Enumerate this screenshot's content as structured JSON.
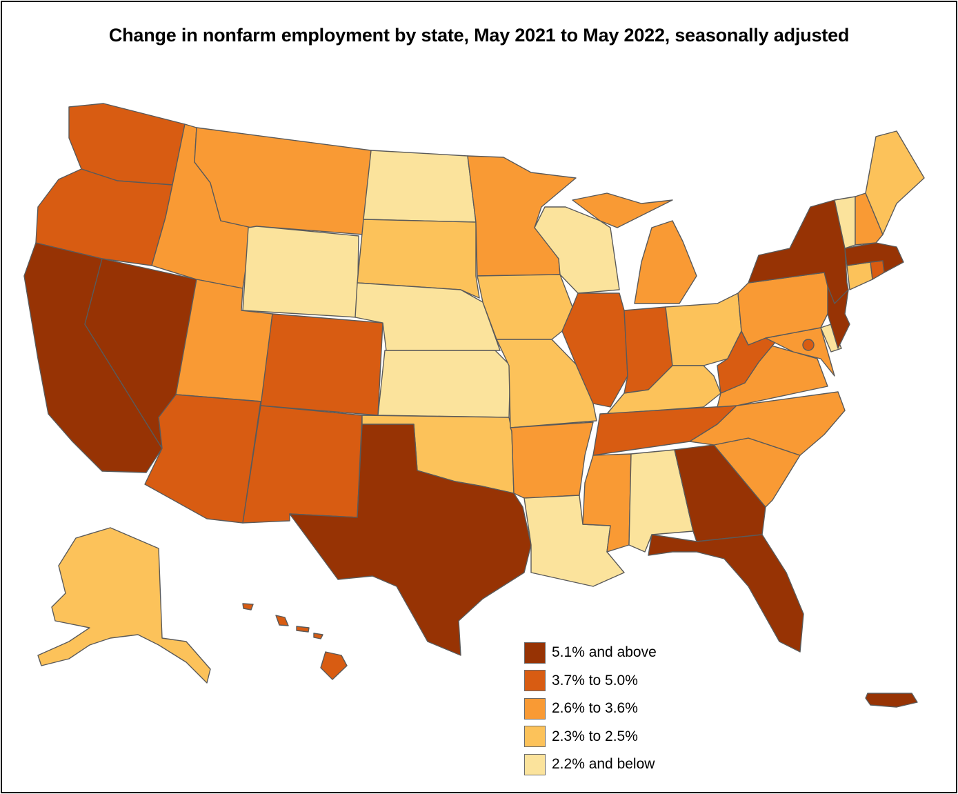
{
  "title": "Change in nonfarm employment by state, May 2021 to May 2022, seasonally adjusted",
  "colors": {
    "c1": "#fbe39c",
    "c2": "#fcc25a",
    "c3": "#f99a34",
    "c4": "#d85c12",
    "c5": "#973304"
  },
  "legend": [
    {
      "label": "5.1% and above",
      "color_key": "c5"
    },
    {
      "label": "3.7% to 5.0%",
      "color_key": "c4"
    },
    {
      "label": "2.6% to 3.6%",
      "color_key": "c3"
    },
    {
      "label": "2.3% to 2.5%",
      "color_key": "c2"
    },
    {
      "label": "2.2% and below",
      "color_key": "c1"
    }
  ],
  "states": {
    "WA": "c4",
    "OR": "c4",
    "CA": "c5",
    "NV": "c5",
    "ID": "c3",
    "MT": "c3",
    "WY": "c1",
    "UT": "c3",
    "AZ": "c4",
    "CO": "c4",
    "NM": "c4",
    "ND": "c1",
    "SD": "c2",
    "NE": "c1",
    "KS": "c1",
    "OK": "c2",
    "TX": "c5",
    "MN": "c3",
    "IA": "c2",
    "MO": "c2",
    "AR": "c3",
    "LA": "c1",
    "WI": "c1",
    "IL": "c4",
    "MI": "c3",
    "IN": "c4",
    "OH": "c2",
    "KY": "c2",
    "TN": "c4",
    "MS": "c3",
    "AL": "c1",
    "GA": "c5",
    "FL": "c5",
    "SC": "c3",
    "NC": "c3",
    "VA": "c3",
    "WV": "c4",
    "MD": "c3",
    "DE": "c1",
    "DC": "c4",
    "PA": "c3",
    "NJ": "c5",
    "NY": "c5",
    "CT": "c2",
    "RI": "c4",
    "MA": "c5",
    "VT": "c1",
    "NH": "c3",
    "ME": "c2",
    "AK": "c2",
    "HI": "c4",
    "PR": "c5"
  }
}
